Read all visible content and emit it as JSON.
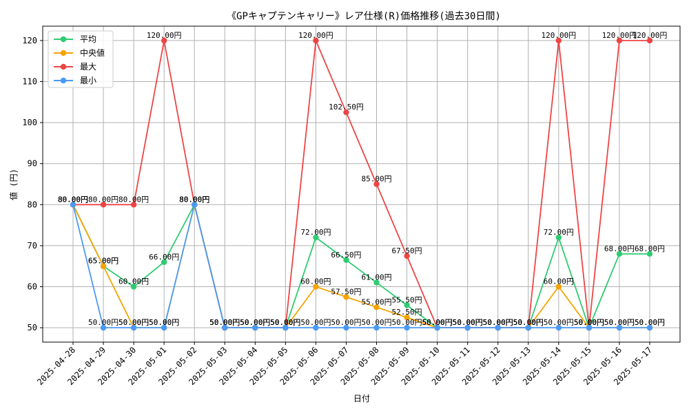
{
  "chart_data": {
    "type": "line",
    "title": "《GPキャプテンキャリー》レア仕様(R)価格推移(過去30日間)",
    "xlabel": "日付",
    "ylabel": "値 (円)",
    "ylim": [
      46.5,
      123.5
    ],
    "yticks": [
      50,
      60,
      70,
      80,
      90,
      100,
      110,
      120
    ],
    "grid": true,
    "legend_position": "top-left",
    "value_suffix": "円",
    "categories": [
      "2025-04-28",
      "2025-04-29",
      "2025-04-30",
      "2025-05-01",
      "2025-05-02",
      "2025-05-03",
      "2025-05-04",
      "2025-05-05",
      "2025-05-06",
      "2025-05-07",
      "2025-05-08",
      "2025-05-09",
      "2025-05-10",
      "2025-05-11",
      "2025-05-12",
      "2025-05-13",
      "2025-05-14",
      "2025-05-15",
      "2025-05-16",
      "2025-05-17"
    ],
    "series": [
      {
        "name": "平均",
        "color": "#2ecc71",
        "values": [
          80,
          65,
          60,
          66,
          80,
          50,
          50,
          50,
          72,
          66.5,
          61,
          55.5,
          50,
          50,
          50,
          50,
          72,
          50,
          68,
          68
        ]
      },
      {
        "name": "中央値",
        "color": "#f5a300",
        "values": [
          80,
          65,
          50,
          50,
          80,
          50,
          50,
          50,
          60,
          57.5,
          55,
          52.5,
          50,
          50,
          50,
          50,
          60,
          50,
          50,
          50
        ]
      },
      {
        "name": "最大",
        "color": "#ee4444",
        "values": [
          80,
          80,
          80,
          120,
          80,
          50,
          50,
          50,
          120,
          102.5,
          85,
          67.5,
          50,
          50,
          50,
          50,
          120,
          50,
          120,
          120
        ]
      },
      {
        "name": "最小",
        "color": "#4a9af5",
        "values": [
          80,
          50,
          50,
          50,
          80,
          50,
          50,
          50,
          50,
          50,
          50,
          50,
          50,
          50,
          50,
          50,
          50,
          50,
          50,
          50
        ]
      }
    ]
  }
}
